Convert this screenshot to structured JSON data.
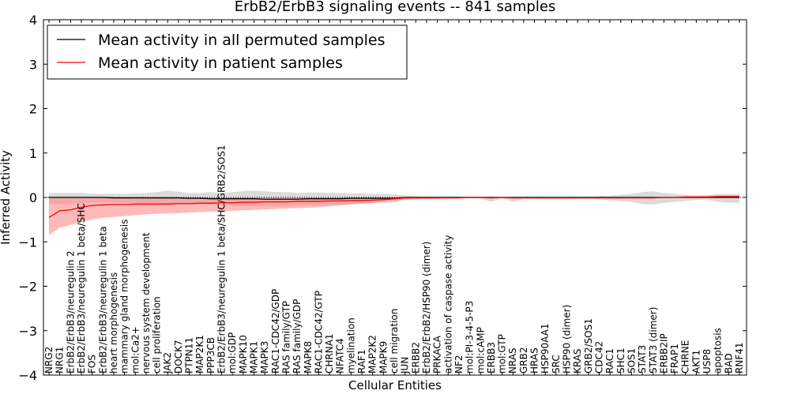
{
  "chart_data": {
    "type": "line",
    "title": "ErbB2/ErbB3 signaling events -- 841 samples",
    "xlabel": "Cellular Entities",
    "ylabel": "Inferred Activity",
    "ylim": [
      -4,
      4
    ],
    "yticks": [
      -4,
      -3,
      -2,
      -1,
      0,
      1,
      2,
      3,
      4
    ],
    "grid": false,
    "legend_position": "top-left",
    "colors": {
      "permuted": "#000000",
      "patient": "#ff0000",
      "permuted_band": "#b0b0b0",
      "patient_band": "#ff8080"
    },
    "categories": [
      "NRG2",
      "NRG1",
      "ErbB2/ErbB3/neuregulin 2",
      "ErbB2/ErbB3/neuregulin 1 beta/SHC",
      "FOS",
      "ErbB2/ErbB3/neuregulin 1 beta",
      "heart morphogenesis",
      "mammary gland morphogenesis",
      "mol:Ca2+",
      "nervous system development",
      "cell proliferation",
      "JAK2",
      "DOCK7",
      "PTPN11",
      "MAP2K1",
      "PPP3CB",
      "ErbB2/ErbB3/neuregulin 1 beta/SHC/GRB2/SOS1",
      "mol:GDP",
      "MAPK10",
      "MAPK1",
      "MAPK3",
      "RAC1-CDC42/GDP",
      "RAS family/GTP",
      "RAS family/GDP",
      "MAPK8",
      "RAC1-CDC42/GTP",
      "CHRNA1",
      "NFATC4",
      "myelination",
      "RAF1",
      "MAP2K2",
      "MAPK9",
      "cell migration",
      "JUN",
      "ERBB2",
      "ErbB2/ErbB2/HSP90 (dimer)",
      "PRKACA",
      "activation of caspase activity",
      "NF2",
      "mol:PI-3-4-5-P3",
      "mol:cAMP",
      "ERBB3",
      "mol:GTP",
      "NRAS",
      "GRB2",
      "HRAS",
      "HSP90AA1",
      "SRC",
      "HSP90 (dimer)",
      "KRAS",
      "GRB2/SOS1",
      "CDC42",
      "RAC1",
      "SHC1",
      "SOS1",
      "STAT3",
      "STAT3 (dimer)",
      "ERBB2IP",
      "FRAP1",
      "CHRNE",
      "AKT1",
      "USP8",
      "apoptosis",
      "BAD",
      "RNF41"
    ],
    "series": [
      {
        "name": "Mean activity in all permuted samples",
        "values": [
          0.0,
          0.0,
          0.0,
          0.0,
          0.0,
          0.0,
          -0.01,
          -0.01,
          -0.01,
          -0.01,
          -0.01,
          -0.01,
          -0.01,
          -0.02,
          -0.02,
          -0.03,
          -0.03,
          -0.03,
          -0.03,
          -0.03,
          -0.04,
          -0.04,
          -0.04,
          -0.04,
          -0.03,
          -0.03,
          -0.03,
          -0.03,
          -0.02,
          -0.02,
          -0.02,
          -0.02,
          -0.02,
          0.0,
          0.0,
          0.0,
          0.0,
          0.0,
          0.0,
          0.0,
          0.0,
          0.0,
          0.0,
          0.0,
          0.0,
          0.0,
          0.0,
          0.0,
          0.0,
          0.0,
          0.0,
          0.0,
          0.0,
          0.0,
          0.0,
          0.0,
          0.0,
          0.0,
          0.0,
          0.0,
          0.0,
          0.0,
          0.0,
          0.0,
          0.0
        ],
        "band": [
          [
            -0.15,
            0.1
          ],
          [
            -0.15,
            0.1
          ],
          [
            -0.15,
            0.1
          ],
          [
            -0.14,
            0.1
          ],
          [
            -0.12,
            0.08
          ],
          [
            -0.12,
            0.08
          ],
          [
            -0.12,
            0.08
          ],
          [
            -0.13,
            0.08
          ],
          [
            -0.13,
            0.09
          ],
          [
            -0.14,
            0.1
          ],
          [
            -0.14,
            0.12
          ],
          [
            -0.15,
            0.15
          ],
          [
            -0.14,
            0.13
          ],
          [
            -0.16,
            0.1
          ],
          [
            -0.15,
            0.1
          ],
          [
            -0.16,
            0.12
          ],
          [
            -0.16,
            0.1
          ],
          [
            -0.18,
            0.12
          ],
          [
            -0.2,
            0.14
          ],
          [
            -0.2,
            0.15
          ],
          [
            -0.2,
            0.14
          ],
          [
            -0.2,
            0.12
          ],
          [
            -0.2,
            0.12
          ],
          [
            -0.18,
            0.1
          ],
          [
            -0.18,
            0.11
          ],
          [
            -0.18,
            0.11
          ],
          [
            -0.16,
            0.1
          ],
          [
            -0.16,
            0.1
          ],
          [
            -0.15,
            0.09
          ],
          [
            -0.14,
            0.09
          ],
          [
            -0.13,
            0.08
          ],
          [
            -0.13,
            0.08
          ],
          [
            -0.12,
            0.07
          ],
          [
            -0.04,
            0.04
          ],
          [
            -0.04,
            0.03
          ],
          [
            -0.04,
            0.02
          ],
          [
            -0.03,
            0.02
          ],
          [
            -0.03,
            0.02
          ],
          [
            -0.02,
            0.02
          ],
          [
            -0.02,
            0.02
          ],
          [
            -0.02,
            0.02
          ],
          [
            -0.1,
            0.02
          ],
          [
            -0.02,
            0.02
          ],
          [
            -0.1,
            0.02
          ],
          [
            -0.03,
            0.02
          ],
          [
            -0.03,
            0.02
          ],
          [
            -0.04,
            0.02
          ],
          [
            -0.04,
            0.02
          ],
          [
            -0.04,
            0.02
          ],
          [
            -0.03,
            0.02
          ],
          [
            -0.03,
            0.02
          ],
          [
            -0.04,
            0.03
          ],
          [
            -0.06,
            0.04
          ],
          [
            -0.08,
            0.06
          ],
          [
            -0.1,
            0.08
          ],
          [
            -0.15,
            0.12
          ],
          [
            -0.16,
            0.14
          ],
          [
            -0.12,
            0.1
          ],
          [
            -0.1,
            0.08
          ],
          [
            -0.08,
            0.06
          ],
          [
            -0.06,
            0.04
          ],
          [
            -0.05,
            0.05
          ],
          [
            -0.1,
            0.08
          ],
          [
            -0.12,
            0.08
          ],
          [
            -0.12,
            0.08
          ]
        ]
      },
      {
        "name": "Mean activity in patient samples",
        "values": [
          -0.45,
          -0.3,
          -0.28,
          -0.22,
          -0.18,
          -0.17,
          -0.16,
          -0.16,
          -0.15,
          -0.15,
          -0.15,
          -0.15,
          -0.14,
          -0.14,
          -0.13,
          -0.13,
          -0.12,
          -0.12,
          -0.11,
          -0.11,
          -0.1,
          -0.1,
          -0.1,
          -0.09,
          -0.09,
          -0.09,
          -0.08,
          -0.08,
          -0.07,
          -0.07,
          -0.06,
          -0.05,
          -0.03,
          -0.01,
          -0.01,
          -0.01,
          -0.01,
          -0.01,
          -0.01,
          0.0,
          0.0,
          -0.01,
          0.0,
          -0.01,
          -0.01,
          -0.01,
          -0.01,
          -0.01,
          -0.01,
          -0.01,
          -0.01,
          -0.01,
          -0.01,
          -0.01,
          -0.01,
          -0.01,
          -0.01,
          0.0,
          0.0,
          0.01,
          0.01,
          0.01,
          0.02,
          0.02,
          0.02
        ],
        "band": [
          [
            -0.85,
            0.02
          ],
          [
            -0.68,
            0.0
          ],
          [
            -0.62,
            0.0
          ],
          [
            -0.55,
            0.0
          ],
          [
            -0.5,
            0.0
          ],
          [
            -0.46,
            0.0
          ],
          [
            -0.44,
            0.0
          ],
          [
            -0.42,
            0.0
          ],
          [
            -0.4,
            0.0
          ],
          [
            -0.38,
            0.0
          ],
          [
            -0.37,
            0.0
          ],
          [
            -0.36,
            0.0
          ],
          [
            -0.35,
            0.0
          ],
          [
            -0.34,
            0.0
          ],
          [
            -0.33,
            0.0
          ],
          [
            -0.32,
            0.0
          ],
          [
            -0.31,
            0.0
          ],
          [
            -0.3,
            0.0
          ],
          [
            -0.29,
            0.0
          ],
          [
            -0.28,
            0.0
          ],
          [
            -0.27,
            0.0
          ],
          [
            -0.26,
            0.0
          ],
          [
            -0.25,
            0.0
          ],
          [
            -0.24,
            0.0
          ],
          [
            -0.23,
            0.0
          ],
          [
            -0.22,
            0.0
          ],
          [
            -0.2,
            0.0
          ],
          [
            -0.18,
            0.0
          ],
          [
            -0.16,
            0.0
          ],
          [
            -0.14,
            0.0
          ],
          [
            -0.12,
            0.0
          ],
          [
            -0.1,
            0.0
          ],
          [
            -0.08,
            0.0
          ],
          [
            -0.05,
            0.0
          ],
          [
            -0.04,
            0.0
          ],
          [
            -0.03,
            0.0
          ],
          [
            -0.03,
            0.0
          ],
          [
            -0.02,
            0.0
          ],
          [
            -0.02,
            0.0
          ],
          [
            -0.02,
            0.01
          ],
          [
            -0.02,
            0.01
          ],
          [
            -0.02,
            0.0
          ],
          [
            -0.02,
            0.01
          ],
          [
            -0.02,
            0.0
          ],
          [
            -0.02,
            0.0
          ],
          [
            -0.02,
            0.0
          ],
          [
            -0.02,
            0.0
          ],
          [
            -0.02,
            0.0
          ],
          [
            -0.02,
            0.0
          ],
          [
            -0.02,
            0.0
          ],
          [
            -0.02,
            0.0
          ],
          [
            -0.02,
            0.0
          ],
          [
            -0.02,
            0.0
          ],
          [
            -0.02,
            0.0
          ],
          [
            -0.02,
            0.0
          ],
          [
            -0.02,
            0.0
          ],
          [
            -0.02,
            0.0
          ],
          [
            -0.02,
            0.01
          ],
          [
            -0.01,
            0.01
          ],
          [
            -0.01,
            0.02
          ],
          [
            -0.01,
            0.03
          ],
          [
            0.0,
            0.03
          ],
          [
            0.0,
            0.04
          ],
          [
            0.0,
            0.04
          ],
          [
            0.0,
            0.04
          ]
        ]
      }
    ]
  }
}
